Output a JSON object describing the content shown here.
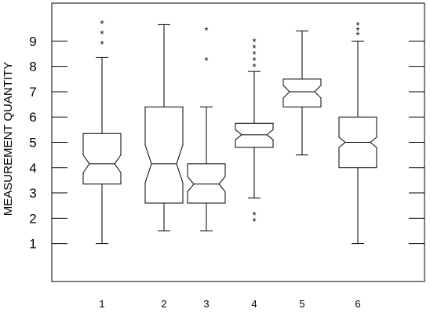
{
  "chart_data": {
    "type": "boxplot",
    "notched": true,
    "title": "",
    "xlabel": "",
    "ylabel": "MEASUREMENT  QUANTITY",
    "ylim": [
      -0.5,
      10.5
    ],
    "yticks": [
      "1",
      "2",
      "3",
      "4",
      "5",
      "6",
      "7",
      "8",
      "9"
    ],
    "grid": false,
    "legend": "none",
    "categories": [
      "1",
      "2",
      "3",
      "4",
      "5",
      "6"
    ],
    "boxes": [
      {
        "label": "1",
        "min": 1.0,
        "q1": 3.35,
        "median": 4.15,
        "q3": 5.35,
        "max": 8.35,
        "notch_low": 3.8,
        "notch_high": 4.5,
        "outliers": [
          8.95,
          9.35,
          9.75
        ]
      },
      {
        "label": "2",
        "min": 1.5,
        "q1": 2.6,
        "median": 4.15,
        "q3": 6.4,
        "max": 9.65,
        "notch_low": 3.4,
        "notch_high": 4.9,
        "outliers": []
      },
      {
        "label": "3",
        "min": 1.5,
        "q1": 2.6,
        "median": 3.35,
        "q3": 4.15,
        "max": 6.4,
        "notch_low": 3.05,
        "notch_high": 3.65,
        "outliers": [
          8.3,
          9.5
        ]
      },
      {
        "label": "4",
        "min": 2.8,
        "q1": 4.8,
        "median": 5.3,
        "q3": 5.75,
        "max": 7.8,
        "notch_low": 5.1,
        "notch_high": 5.5,
        "outliers": [
          1.95,
          2.2,
          8.05,
          8.3,
          8.55,
          8.8,
          9.05
        ]
      },
      {
        "label": "5",
        "min": 4.5,
        "q1": 6.4,
        "median": 7.0,
        "q3": 7.5,
        "max": 9.4,
        "notch_low": 6.75,
        "notch_high": 7.25,
        "outliers": []
      },
      {
        "label": "6",
        "min": 1.0,
        "q1": 4.0,
        "median": 5.0,
        "q3": 6.0,
        "max": 9.0,
        "notch_low": 4.8,
        "notch_high": 5.2,
        "outliers": [
          9.3,
          9.5,
          9.7
        ]
      }
    ]
  }
}
